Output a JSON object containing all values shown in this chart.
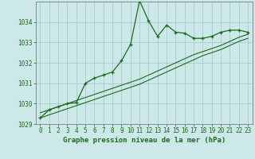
{
  "title": "Graphe pression niveau de la mer (hPa)",
  "background_color": "#cce8e8",
  "grid_color": "#aacccc",
  "line_color": "#1a6b1a",
  "spine_color": "#666666",
  "x_values": [
    0,
    1,
    2,
    3,
    4,
    5,
    6,
    7,
    8,
    9,
    10,
    11,
    12,
    13,
    14,
    15,
    16,
    17,
    18,
    19,
    20,
    21,
    22,
    23
  ],
  "main_line": [
    1029.3,
    1029.7,
    1029.85,
    1030.0,
    1030.05,
    1031.0,
    1031.25,
    1031.4,
    1031.55,
    1032.1,
    1032.9,
    1035.05,
    1034.05,
    1033.3,
    1033.85,
    1033.5,
    1033.45,
    1033.2,
    1033.2,
    1033.3,
    1033.5,
    1033.6,
    1033.6,
    1033.5
  ],
  "trend_line1": [
    1029.3,
    1029.45,
    1029.6,
    1029.75,
    1029.9,
    1030.05,
    1030.2,
    1030.35,
    1030.5,
    1030.65,
    1030.8,
    1030.95,
    1031.15,
    1031.35,
    1031.55,
    1031.75,
    1031.95,
    1032.15,
    1032.35,
    1032.5,
    1032.65,
    1032.85,
    1033.05,
    1033.2
  ],
  "trend_line2": [
    1029.55,
    1029.7,
    1029.85,
    1030.0,
    1030.15,
    1030.3,
    1030.45,
    1030.6,
    1030.75,
    1030.9,
    1031.05,
    1031.2,
    1031.4,
    1031.6,
    1031.8,
    1032.0,
    1032.2,
    1032.4,
    1032.55,
    1032.7,
    1032.85,
    1033.05,
    1033.25,
    1033.4
  ],
  "ylim": [
    1029.0,
    1035.0
  ],
  "yticks": [
    1029,
    1030,
    1031,
    1032,
    1033,
    1034
  ],
  "xticks": [
    0,
    1,
    2,
    3,
    4,
    5,
    6,
    7,
    8,
    9,
    10,
    11,
    12,
    13,
    14,
    15,
    16,
    17,
    18,
    19,
    20,
    21,
    22,
    23
  ],
  "xlabel_fontsize": 6.5,
  "tick_fontsize": 5.5,
  "ylabel_fontsize": 5.5
}
